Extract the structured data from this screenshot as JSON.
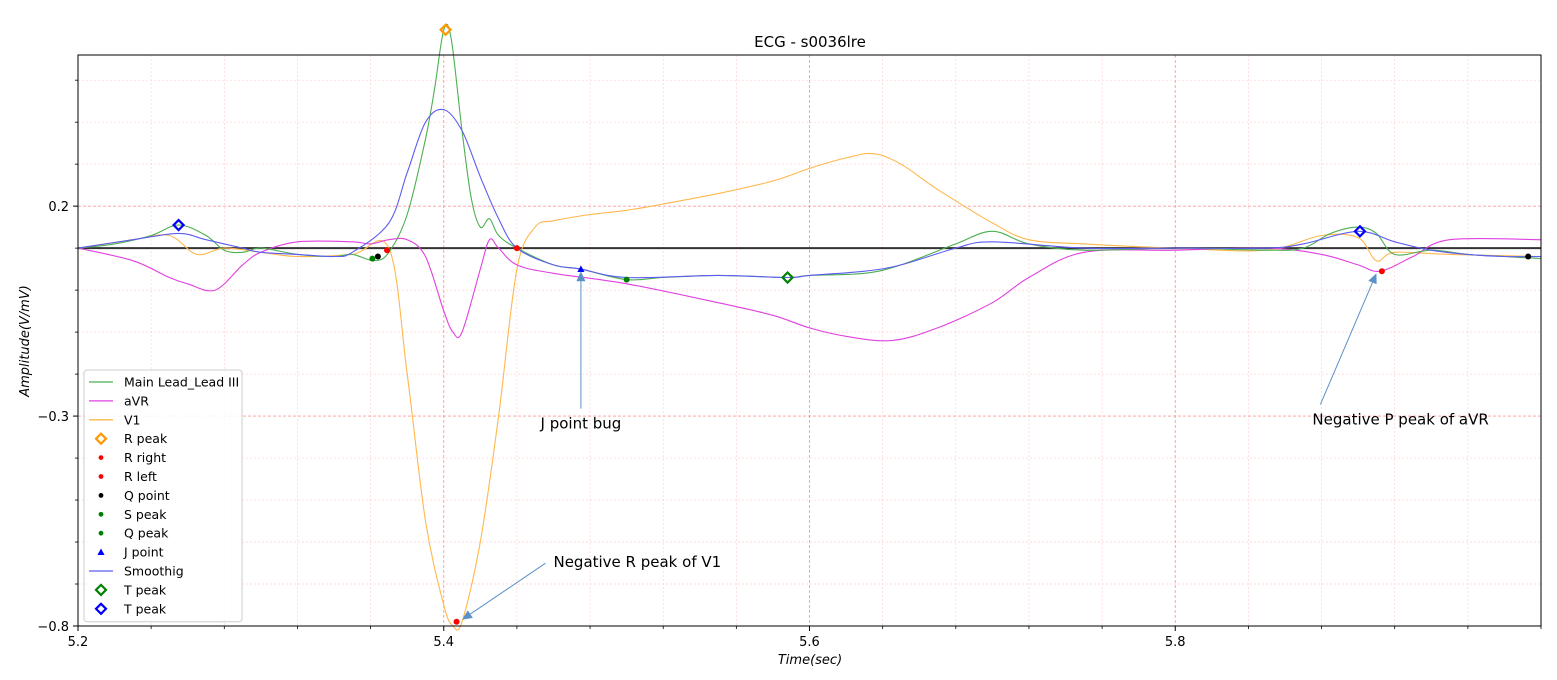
{
  "chart_data": {
    "type": "line",
    "title": "ECG - s0036lre",
    "xlabel": "Time(sec)",
    "ylabel": "Amplitude(V/mV)",
    "xlim": [
      5.2,
      6.0
    ],
    "ylim": [
      -0.8,
      0.56
    ],
    "x_major_ticks": [
      5.2,
      5.4,
      5.6,
      5.8
    ],
    "x_tick_labels": [
      "5.2",
      "5.4",
      "5.6",
      "5.8"
    ],
    "y_major_ticks": [
      -0.8,
      -0.3,
      0.2
    ],
    "y_tick_labels": [
      "−0.8",
      "−0.3",
      "0.2"
    ],
    "grid": true,
    "legend_position": "lower-left",
    "series": [
      {
        "name": "Main Lead_Lead III",
        "color": "#4caf50",
        "x": [
          5.2,
          5.22,
          5.24,
          5.255,
          5.27,
          5.28,
          5.29,
          5.3,
          5.32,
          5.34,
          5.35,
          5.362,
          5.37,
          5.38,
          5.39,
          5.395,
          5.4,
          5.404,
          5.41,
          5.415,
          5.42,
          5.425,
          5.43,
          5.44,
          5.46,
          5.475,
          5.5,
          5.52,
          5.55,
          5.588,
          5.6,
          5.63,
          5.65,
          5.68,
          5.7,
          5.72,
          5.75,
          5.8,
          5.85,
          5.87,
          5.885,
          5.9,
          5.91,
          5.92,
          5.94,
          5.96,
          5.98,
          6.0
        ],
        "y": [
          0.1,
          0.11,
          0.13,
          0.155,
          0.13,
          0.095,
          0.09,
          0.1,
          0.085,
          0.08,
          0.085,
          0.07,
          0.09,
          0.18,
          0.36,
          0.48,
          0.62,
          0.6,
          0.38,
          0.22,
          0.15,
          0.17,
          0.13,
          0.1,
          0.06,
          0.05,
          0.025,
          0.03,
          0.035,
          0.03,
          0.035,
          0.04,
          0.06,
          0.11,
          0.14,
          0.11,
          0.095,
          0.1,
          0.095,
          0.1,
          0.135,
          0.15,
          0.135,
          0.085,
          0.095,
          0.085,
          0.08,
          0.075
        ]
      },
      {
        "name": "aVR",
        "color": "#e040e0",
        "x": [
          5.2,
          5.23,
          5.25,
          5.26,
          5.275,
          5.29,
          5.3,
          5.32,
          5.35,
          5.36,
          5.37,
          5.38,
          5.39,
          5.4,
          5.405,
          5.41,
          5.42,
          5.425,
          5.43,
          5.44,
          5.46,
          5.5,
          5.55,
          5.58,
          5.6,
          5.62,
          5.645,
          5.67,
          5.7,
          5.72,
          5.75,
          5.8,
          5.85,
          5.88,
          5.9,
          5.912,
          5.93,
          5.95,
          6.0
        ],
        "y": [
          0.1,
          0.07,
          0.03,
          0.015,
          0.0,
          0.06,
          0.09,
          0.115,
          0.115,
          0.11,
          0.12,
          0.12,
          0.08,
          -0.05,
          -0.1,
          -0.1,
          0.05,
          0.12,
          0.1,
          0.06,
          0.04,
          0.015,
          -0.03,
          -0.06,
          -0.09,
          -0.11,
          -0.12,
          -0.09,
          -0.03,
          0.03,
          0.09,
          0.095,
          0.1,
          0.085,
          0.06,
          0.045,
          0.08,
          0.12,
          0.12
        ]
      },
      {
        "name": "V1",
        "color": "#ffb74d",
        "x": [
          5.2,
          5.23,
          5.25,
          5.265,
          5.28,
          5.3,
          5.32,
          5.35,
          5.37,
          5.38,
          5.39,
          5.4,
          5.405,
          5.41,
          5.42,
          5.43,
          5.44,
          5.45,
          5.46,
          5.48,
          5.5,
          5.52,
          5.55,
          5.58,
          5.6,
          5.62,
          5.635,
          5.65,
          5.67,
          5.7,
          5.72,
          5.75,
          5.8,
          5.85,
          5.88,
          5.9,
          5.91,
          5.92,
          5.95,
          6.0
        ],
        "y": [
          0.1,
          0.12,
          0.13,
          0.085,
          0.1,
          0.09,
          0.08,
          0.085,
          0.1,
          -0.2,
          -0.55,
          -0.75,
          -0.8,
          -0.79,
          -0.6,
          -0.3,
          0.05,
          0.15,
          0.165,
          0.18,
          0.19,
          0.205,
          0.23,
          0.26,
          0.29,
          0.315,
          0.325,
          0.3,
          0.24,
          0.16,
          0.12,
          0.11,
          0.1,
          0.095,
          0.13,
          0.125,
          0.07,
          0.09,
          0.085,
          0.08
        ]
      },
      {
        "name": "Smoothig",
        "color": "#5c5cf0",
        "x": [
          5.2,
          5.23,
          5.255,
          5.27,
          5.29,
          5.3,
          5.32,
          5.34,
          5.35,
          5.37,
          5.38,
          5.39,
          5.4,
          5.41,
          5.42,
          5.43,
          5.44,
          5.46,
          5.475,
          5.5,
          5.55,
          5.588,
          5.6,
          5.63,
          5.65,
          5.68,
          5.7,
          5.75,
          5.8,
          5.85,
          5.87,
          5.9,
          5.92,
          5.94,
          5.96,
          5.98,
          6.0
        ],
        "y": [
          0.1,
          0.12,
          0.135,
          0.12,
          0.1,
          0.09,
          0.085,
          0.08,
          0.09,
          0.16,
          0.28,
          0.4,
          0.43,
          0.38,
          0.27,
          0.17,
          0.1,
          0.06,
          0.05,
          0.03,
          0.035,
          0.03,
          0.035,
          0.045,
          0.06,
          0.1,
          0.115,
          0.1,
          0.1,
          0.1,
          0.11,
          0.14,
          0.115,
          0.095,
          0.085,
          0.08,
          0.08
        ]
      }
    ],
    "markers": [
      {
        "name": "R peak",
        "shape": "diamond-open",
        "color": "#ff9800",
        "points": [
          [
            5.401,
            0.62
          ]
        ]
      },
      {
        "name": "R right",
        "shape": "dot",
        "color": "#ff0000",
        "points": [
          [
            5.407,
            -0.79
          ],
          [
            5.913,
            0.045
          ]
        ]
      },
      {
        "name": "R left",
        "shape": "dot",
        "color": "#ff0000",
        "points": [
          [
            5.369,
            0.095
          ],
          [
            5.44,
            0.1
          ]
        ]
      },
      {
        "name": "Q point",
        "shape": "dot",
        "color": "#000000",
        "points": [
          [
            5.364,
            0.08
          ],
          [
            5.993,
            0.08
          ]
        ]
      },
      {
        "name": "S peak",
        "shape": "dot",
        "color": "#008000",
        "points": [
          [
            5.5,
            0.025
          ]
        ]
      },
      {
        "name": "Q peak",
        "shape": "dot",
        "color": "#008000",
        "points": [
          [
            5.361,
            0.075
          ]
        ]
      },
      {
        "name": "J point",
        "shape": "triangle",
        "color": "#0000ff",
        "points": [
          [
            5.475,
            0.05
          ]
        ]
      },
      {
        "name": "T peak",
        "shape": "diamond-open",
        "color": "#008000",
        "points": [
          [
            5.588,
            0.03
          ]
        ]
      },
      {
        "name": "T peak",
        "shape": "diamond-open",
        "color": "#0000ff",
        "points": [
          [
            5.255,
            0.155
          ],
          [
            5.901,
            0.14
          ]
        ]
      }
    ],
    "legend": [
      {
        "label": "Main Lead_Lead III",
        "kind": "line",
        "color": "#4caf50"
      },
      {
        "label": "aVR",
        "kind": "line",
        "color": "#e040e0"
      },
      {
        "label": "V1",
        "kind": "line",
        "color": "#ffb74d"
      },
      {
        "label": "R peak",
        "kind": "diamond-open",
        "color": "#ff9800"
      },
      {
        "label": "R right",
        "kind": "dot",
        "color": "#ff0000"
      },
      {
        "label": "R left",
        "kind": "dot",
        "color": "#ff0000"
      },
      {
        "label": "Q point",
        "kind": "dot",
        "color": "#000000"
      },
      {
        "label": "S peak",
        "kind": "dot",
        "color": "#008000"
      },
      {
        "label": "Q peak",
        "kind": "dot",
        "color": "#008000"
      },
      {
        "label": "J point",
        "kind": "triangle",
        "color": "#0000ff"
      },
      {
        "label": "Smoothig",
        "kind": "line",
        "color": "#5c5cf0"
      },
      {
        "label": "T peak",
        "kind": "diamond-open",
        "color": "#008000"
      },
      {
        "label": "T peak",
        "kind": "diamond-open",
        "color": "#0000ff"
      }
    ],
    "annotations": [
      {
        "text": "J point bug",
        "text_at": [
          5.475,
          -0.33
        ],
        "arrow_to": [
          5.475,
          0.045
        ]
      },
      {
        "text": "Negative R peak of V1",
        "text_at": [
          5.46,
          -0.66
        ],
        "arrow_to": [
          5.41,
          -0.785
        ]
      },
      {
        "text": "Negative P peak of aVR",
        "text_at": [
          5.875,
          -0.32
        ],
        "arrow_to": [
          5.91,
          0.04
        ]
      }
    ],
    "baseline": {
      "y": 0.1,
      "color": "#333333"
    }
  }
}
